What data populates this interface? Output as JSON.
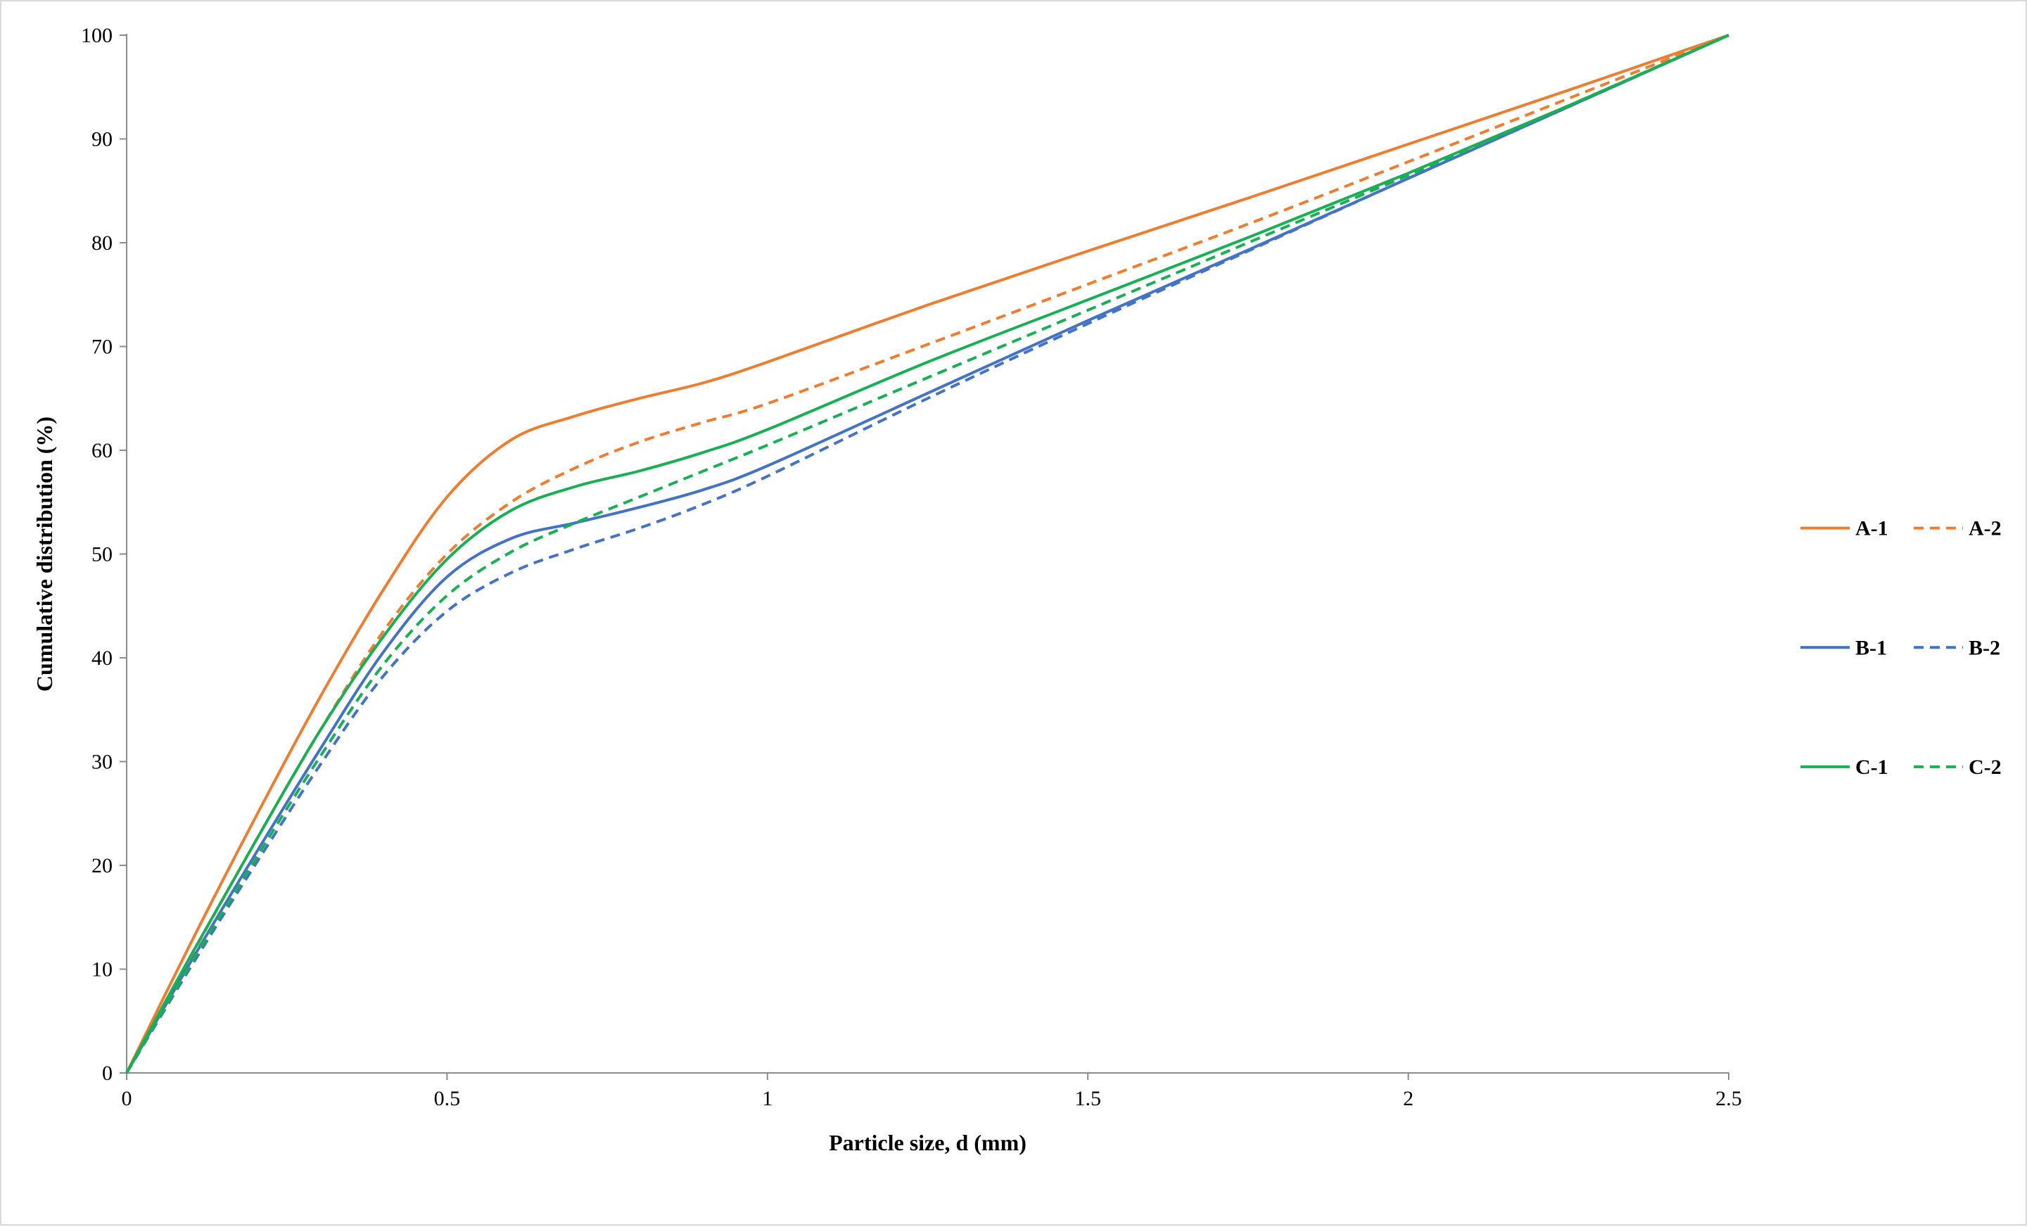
{
  "chart_data": {
    "type": "line",
    "title": "",
    "xlabel": "Particle size, d (mm)",
    "ylabel": "Cumulative distribution (%)",
    "xlim": [
      0,
      2.5
    ],
    "ylim": [
      0,
      100
    ],
    "xticks": [
      0,
      0.5,
      1,
      1.5,
      2,
      2.5
    ],
    "yticks": [
      0,
      10,
      20,
      30,
      40,
      50,
      60,
      70,
      80,
      90,
      100
    ],
    "grid": false,
    "legend_position": "right",
    "colors": {
      "A": "#ed7d31",
      "B": "#4472c4",
      "C": "#1aaf54"
    },
    "series": [
      {
        "name": "A-1",
        "color": "#ed7d31",
        "dash": "solid",
        "x": [
          0,
          0.1,
          0.2,
          0.3,
          0.4,
          0.5,
          0.6,
          0.7,
          0.8,
          0.9,
          1.0,
          1.25,
          1.5,
          1.75,
          2.0,
          2.25,
          2.5
        ],
        "y": [
          0,
          12.5,
          24.5,
          36,
          46.5,
          55.5,
          61,
          63.3,
          65,
          66.5,
          68.5,
          74,
          79.2,
          84.3,
          89.5,
          94.7,
          100
        ]
      },
      {
        "name": "A-2",
        "color": "#ed7d31",
        "dash": "dashed",
        "x": [
          0,
          0.1,
          0.2,
          0.3,
          0.4,
          0.5,
          0.6,
          0.7,
          0.8,
          0.9,
          1.0,
          1.25,
          1.5,
          1.75,
          2.0,
          2.25,
          2.5
        ],
        "y": [
          0,
          11.2,
          22.2,
          32.8,
          42.5,
          50,
          55,
          58.3,
          60.8,
          62.7,
          64.5,
          70.2,
          76,
          81.8,
          87.8,
          93.9,
          100
        ]
      },
      {
        "name": "B-1",
        "color": "#4472c4",
        "dash": "solid",
        "x": [
          0,
          0.1,
          0.2,
          0.3,
          0.4,
          0.5,
          0.6,
          0.7,
          0.8,
          0.9,
          1.0,
          1.25,
          1.5,
          1.75,
          2.0,
          2.25,
          2.5
        ],
        "y": [
          0,
          10.7,
          21,
          31,
          40.5,
          47.8,
          51.5,
          53,
          54.5,
          56.2,
          58.5,
          65.5,
          72.5,
          79.3,
          86.2,
          93.1,
          100
        ]
      },
      {
        "name": "B-2",
        "color": "#4472c4",
        "dash": "dashed",
        "x": [
          0,
          0.1,
          0.2,
          0.3,
          0.4,
          0.5,
          0.6,
          0.7,
          0.8,
          0.9,
          1.0,
          1.25,
          1.5,
          1.75,
          2.0,
          2.25,
          2.5
        ],
        "y": [
          0,
          10.2,
          20,
          29.5,
          38.2,
          44.5,
          48.2,
          50.5,
          52.5,
          54.8,
          57.5,
          65,
          72.2,
          79.2,
          86.2,
          93.1,
          100
        ]
      },
      {
        "name": "C-1",
        "color": "#1aaf54",
        "dash": "solid",
        "x": [
          0,
          0.1,
          0.2,
          0.3,
          0.4,
          0.5,
          0.6,
          0.7,
          0.8,
          0.9,
          1.0,
          1.25,
          1.5,
          1.75,
          2.0,
          2.25,
          2.5
        ],
        "y": [
          0,
          11.3,
          22.2,
          32.8,
          42,
          49.5,
          54.2,
          56.5,
          58,
          59.8,
          62,
          68.5,
          74.5,
          80.5,
          86.7,
          93.2,
          100
        ]
      },
      {
        "name": "C-2",
        "color": "#1aaf54",
        "dash": "dashed",
        "x": [
          0,
          0.1,
          0.2,
          0.3,
          0.4,
          0.5,
          0.6,
          0.7,
          0.8,
          0.9,
          1.0,
          1.25,
          1.5,
          1.75,
          2.0,
          2.25,
          2.5
        ],
        "y": [
          0,
          10.5,
          20.5,
          30.3,
          39.3,
          46,
          50.2,
          53,
          55.5,
          58,
          60.5,
          67,
          73.5,
          80,
          86.5,
          93.2,
          100
        ]
      }
    ]
  }
}
